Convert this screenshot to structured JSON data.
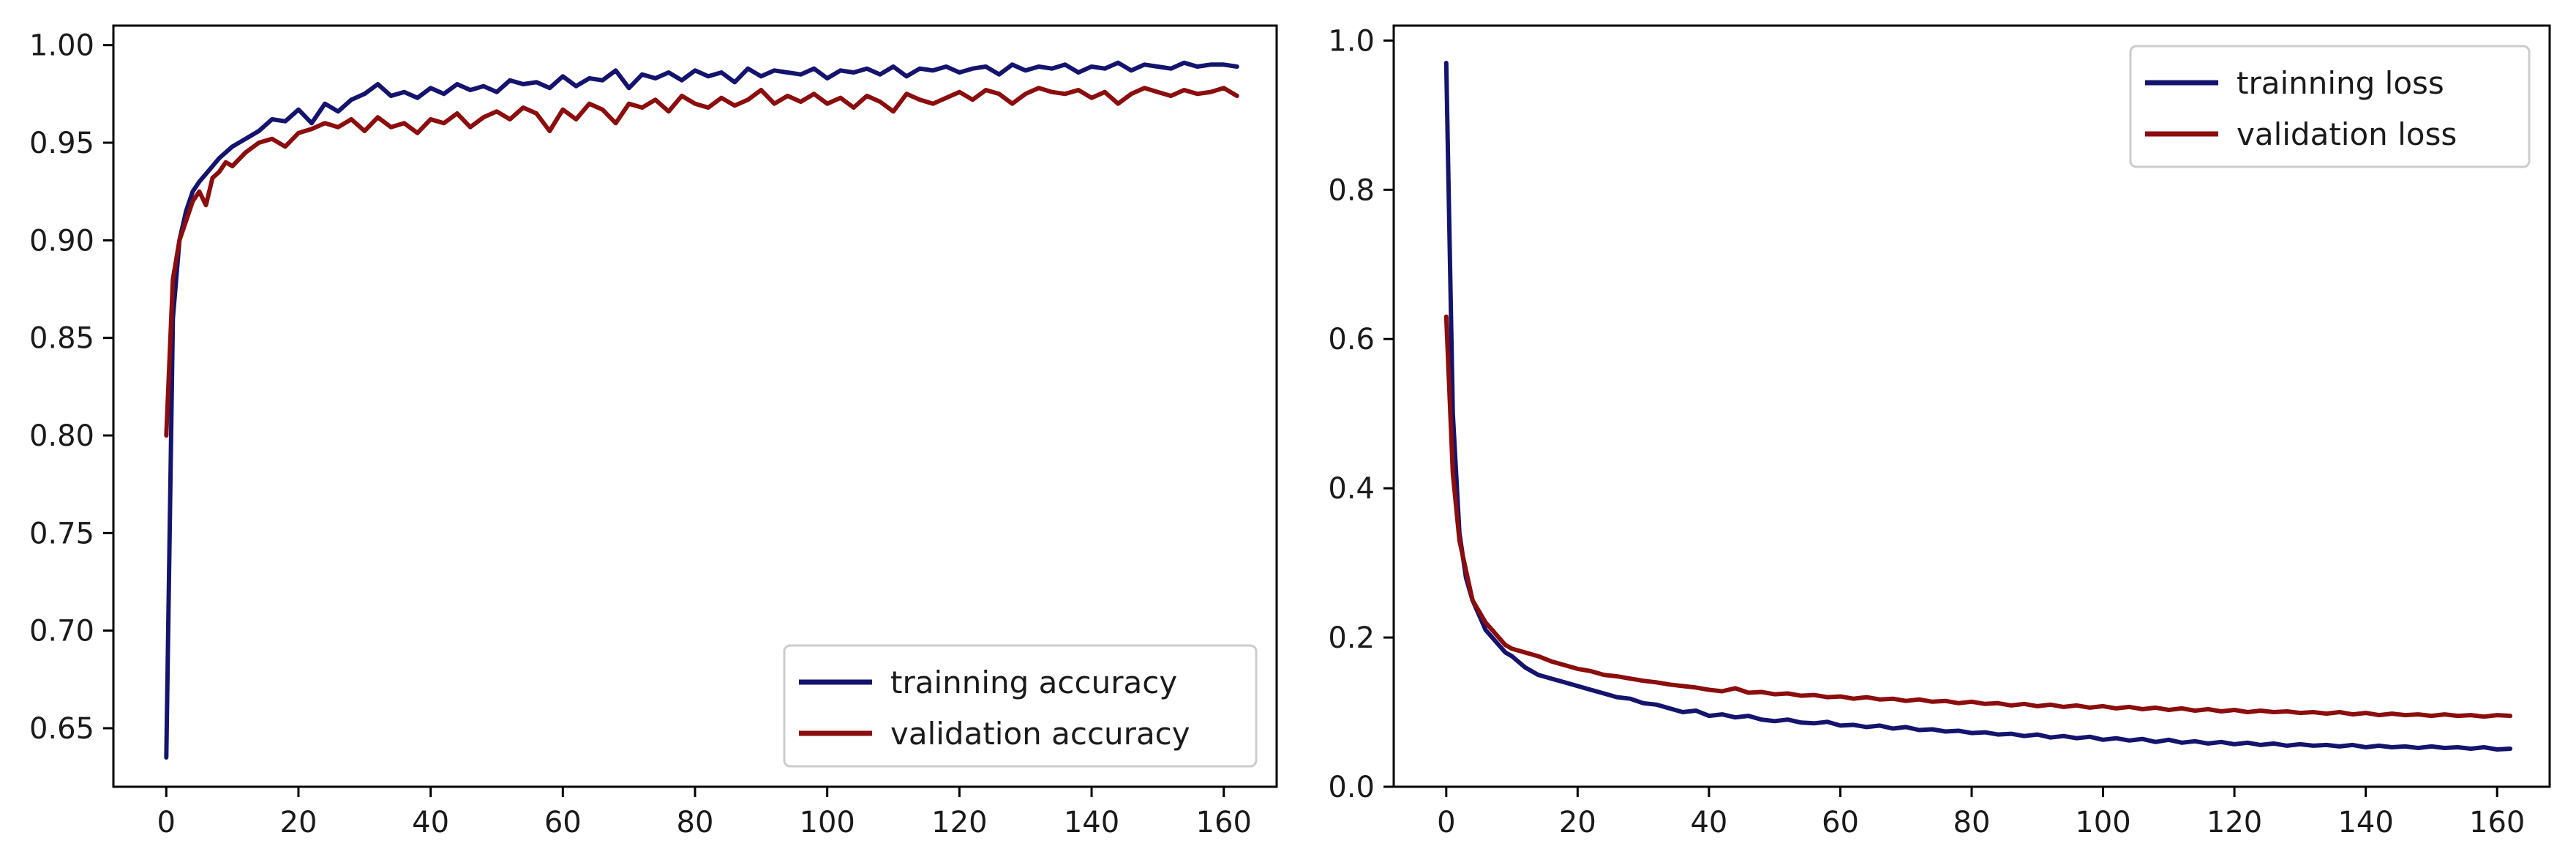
{
  "chart_data": [
    {
      "type": "line",
      "xlim": [
        -8,
        168
      ],
      "ylim": [
        0.62,
        1.01
      ],
      "xticks": [
        0,
        20,
        40,
        60,
        80,
        100,
        120,
        140,
        160
      ],
      "xtick_labels": [
        "0",
        "20",
        "40",
        "60",
        "80",
        "100",
        "120",
        "140",
        "160"
      ],
      "yticks": [
        0.65,
        0.7,
        0.75,
        0.8,
        0.85,
        0.9,
        0.95,
        1.0
      ],
      "ytick_labels": [
        "0.65",
        "0.70",
        "0.75",
        "0.80",
        "0.85",
        "0.90",
        "0.95",
        "1.00"
      ],
      "grid": false,
      "legend_position": "lower-right",
      "series": [
        {
          "name": "trainning accuracy",
          "color": "#14146e",
          "x": [
            0,
            1,
            2,
            3,
            4,
            5,
            6,
            7,
            8,
            9,
            10,
            12,
            14,
            16,
            18,
            20,
            22,
            24,
            26,
            28,
            30,
            32,
            34,
            36,
            38,
            40,
            42,
            44,
            46,
            48,
            50,
            52,
            54,
            56,
            58,
            60,
            62,
            64,
            66,
            68,
            70,
            72,
            74,
            76,
            78,
            80,
            82,
            84,
            86,
            88,
            90,
            92,
            94,
            96,
            98,
            100,
            102,
            104,
            106,
            108,
            110,
            112,
            114,
            116,
            118,
            120,
            122,
            124,
            126,
            128,
            130,
            132,
            134,
            136,
            138,
            140,
            142,
            144,
            146,
            148,
            150,
            152,
            154,
            156,
            158,
            160,
            162
          ],
          "y": [
            0.635,
            0.86,
            0.9,
            0.915,
            0.925,
            0.93,
            0.934,
            0.938,
            0.942,
            0.945,
            0.948,
            0.952,
            0.956,
            0.962,
            0.961,
            0.967,
            0.96,
            0.97,
            0.966,
            0.972,
            0.975,
            0.98,
            0.974,
            0.976,
            0.973,
            0.978,
            0.975,
            0.98,
            0.977,
            0.979,
            0.976,
            0.982,
            0.98,
            0.981,
            0.978,
            0.984,
            0.979,
            0.983,
            0.982,
            0.987,
            0.978,
            0.985,
            0.983,
            0.986,
            0.982,
            0.987,
            0.984,
            0.986,
            0.981,
            0.988,
            0.984,
            0.987,
            0.986,
            0.985,
            0.988,
            0.983,
            0.987,
            0.986,
            0.988,
            0.985,
            0.989,
            0.984,
            0.988,
            0.987,
            0.989,
            0.986,
            0.988,
            0.989,
            0.985,
            0.99,
            0.987,
            0.989,
            0.988,
            0.99,
            0.986,
            0.989,
            0.988,
            0.991,
            0.987,
            0.99,
            0.989,
            0.988,
            0.991,
            0.989,
            0.99,
            0.99,
            0.989
          ]
        },
        {
          "name": "validation accuracy",
          "color": "#8b0d0d",
          "x": [
            0,
            1,
            2,
            3,
            4,
            5,
            6,
            7,
            8,
            9,
            10,
            12,
            14,
            16,
            18,
            20,
            22,
            24,
            26,
            28,
            30,
            32,
            34,
            36,
            38,
            40,
            42,
            44,
            46,
            48,
            50,
            52,
            54,
            56,
            58,
            60,
            62,
            64,
            66,
            68,
            70,
            72,
            74,
            76,
            78,
            80,
            82,
            84,
            86,
            88,
            90,
            92,
            94,
            96,
            98,
            100,
            102,
            104,
            106,
            108,
            110,
            112,
            114,
            116,
            118,
            120,
            122,
            124,
            126,
            128,
            130,
            132,
            134,
            136,
            138,
            140,
            142,
            144,
            146,
            148,
            150,
            152,
            154,
            156,
            158,
            160,
            162
          ],
          "y": [
            0.8,
            0.88,
            0.9,
            0.91,
            0.92,
            0.925,
            0.918,
            0.932,
            0.935,
            0.94,
            0.938,
            0.945,
            0.95,
            0.952,
            0.948,
            0.955,
            0.957,
            0.96,
            0.958,
            0.962,
            0.956,
            0.963,
            0.958,
            0.96,
            0.955,
            0.962,
            0.96,
            0.965,
            0.958,
            0.963,
            0.966,
            0.962,
            0.968,
            0.965,
            0.956,
            0.967,
            0.962,
            0.97,
            0.967,
            0.96,
            0.97,
            0.968,
            0.972,
            0.966,
            0.974,
            0.97,
            0.968,
            0.973,
            0.969,
            0.972,
            0.977,
            0.97,
            0.974,
            0.971,
            0.975,
            0.97,
            0.973,
            0.968,
            0.974,
            0.971,
            0.966,
            0.975,
            0.972,
            0.97,
            0.973,
            0.976,
            0.972,
            0.977,
            0.975,
            0.97,
            0.975,
            0.978,
            0.976,
            0.975,
            0.977,
            0.973,
            0.976,
            0.97,
            0.975,
            0.978,
            0.976,
            0.974,
            0.977,
            0.975,
            0.976,
            0.978,
            0.974
          ]
        }
      ]
    },
    {
      "type": "line",
      "xlim": [
        -8,
        168
      ],
      "ylim": [
        0,
        1.02
      ],
      "xticks": [
        0,
        20,
        40,
        60,
        80,
        100,
        120,
        140,
        160
      ],
      "xtick_labels": [
        "0",
        "20",
        "40",
        "60",
        "80",
        "100",
        "120",
        "140",
        "160"
      ],
      "yticks": [
        0.0,
        0.2,
        0.4,
        0.6,
        0.8,
        1.0
      ],
      "ytick_labels": [
        "0.0",
        "0.2",
        "0.4",
        "0.6",
        "0.8",
        "1.0"
      ],
      "grid": false,
      "legend_position": "upper-right",
      "series": [
        {
          "name": "trainning loss",
          "color": "#14146e",
          "x": [
            0,
            1,
            2,
            3,
            4,
            5,
            6,
            7,
            8,
            9,
            10,
            12,
            14,
            16,
            18,
            20,
            22,
            24,
            26,
            28,
            30,
            32,
            34,
            36,
            38,
            40,
            42,
            44,
            46,
            48,
            50,
            52,
            54,
            56,
            58,
            60,
            62,
            64,
            66,
            68,
            70,
            72,
            74,
            76,
            78,
            80,
            82,
            84,
            86,
            88,
            90,
            92,
            94,
            96,
            98,
            100,
            102,
            104,
            106,
            108,
            110,
            112,
            114,
            116,
            118,
            120,
            122,
            124,
            126,
            128,
            130,
            132,
            134,
            136,
            138,
            140,
            142,
            144,
            146,
            148,
            150,
            152,
            154,
            156,
            158,
            160,
            162
          ],
          "y": [
            0.97,
            0.5,
            0.34,
            0.28,
            0.25,
            0.23,
            0.21,
            0.2,
            0.19,
            0.18,
            0.175,
            0.16,
            0.15,
            0.145,
            0.14,
            0.135,
            0.13,
            0.125,
            0.12,
            0.118,
            0.112,
            0.11,
            0.105,
            0.1,
            0.102,
            0.095,
            0.097,
            0.093,
            0.095,
            0.09,
            0.088,
            0.09,
            0.086,
            0.085,
            0.087,
            0.082,
            0.083,
            0.08,
            0.082,
            0.078,
            0.08,
            0.076,
            0.077,
            0.074,
            0.075,
            0.072,
            0.073,
            0.07,
            0.071,
            0.068,
            0.07,
            0.066,
            0.068,
            0.065,
            0.067,
            0.063,
            0.065,
            0.062,
            0.064,
            0.06,
            0.063,
            0.059,
            0.061,
            0.058,
            0.06,
            0.057,
            0.059,
            0.056,
            0.058,
            0.055,
            0.057,
            0.055,
            0.056,
            0.054,
            0.056,
            0.053,
            0.055,
            0.053,
            0.054,
            0.052,
            0.054,
            0.052,
            0.053,
            0.051,
            0.053,
            0.05,
            0.051
          ]
        },
        {
          "name": "validation loss",
          "color": "#8b0d0d",
          "x": [
            0,
            1,
            2,
            3,
            4,
            5,
            6,
            7,
            8,
            9,
            10,
            12,
            14,
            16,
            18,
            20,
            22,
            24,
            26,
            28,
            30,
            32,
            34,
            36,
            38,
            40,
            42,
            44,
            46,
            48,
            50,
            52,
            54,
            56,
            58,
            60,
            62,
            64,
            66,
            68,
            70,
            72,
            74,
            76,
            78,
            80,
            82,
            84,
            86,
            88,
            90,
            92,
            94,
            96,
            98,
            100,
            102,
            104,
            106,
            108,
            110,
            112,
            114,
            116,
            118,
            120,
            122,
            124,
            126,
            128,
            130,
            132,
            134,
            136,
            138,
            140,
            142,
            144,
            146,
            148,
            150,
            152,
            154,
            156,
            158,
            160,
            162
          ],
          "y": [
            0.63,
            0.42,
            0.33,
            0.29,
            0.25,
            0.235,
            0.22,
            0.21,
            0.2,
            0.19,
            0.185,
            0.18,
            0.175,
            0.168,
            0.163,
            0.158,
            0.155,
            0.15,
            0.148,
            0.145,
            0.142,
            0.14,
            0.137,
            0.135,
            0.133,
            0.13,
            0.128,
            0.132,
            0.126,
            0.127,
            0.124,
            0.125,
            0.122,
            0.123,
            0.12,
            0.121,
            0.118,
            0.12,
            0.117,
            0.118,
            0.115,
            0.117,
            0.114,
            0.115,
            0.112,
            0.114,
            0.111,
            0.112,
            0.109,
            0.111,
            0.108,
            0.11,
            0.107,
            0.109,
            0.106,
            0.108,
            0.105,
            0.107,
            0.104,
            0.106,
            0.103,
            0.105,
            0.102,
            0.104,
            0.101,
            0.103,
            0.1,
            0.102,
            0.1,
            0.101,
            0.099,
            0.1,
            0.098,
            0.1,
            0.097,
            0.099,
            0.096,
            0.098,
            0.096,
            0.097,
            0.095,
            0.097,
            0.095,
            0.096,
            0.094,
            0.096,
            0.095
          ]
        }
      ]
    }
  ]
}
